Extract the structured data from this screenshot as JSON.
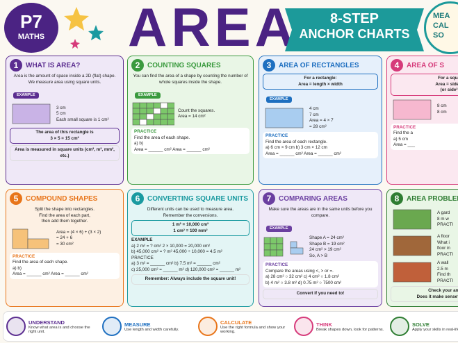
{
  "header": {
    "badge": [
      "P7",
      "MATHS"
    ],
    "title": "AREA",
    "banner": [
      "8-STEP",
      "ANCHOR CHARTS"
    ],
    "corner": [
      "MEA",
      "CAL",
      "SO"
    ]
  },
  "panels": [
    {
      "num": "1",
      "title": "WHAT IS AREA?",
      "color": "#5b2d90",
      "tint": "#efe8f7",
      "blocks": [
        {
          "kind": "intro",
          "lines": [
            "Area is the amount of space inside a 2D (flat) shape.",
            "We measure area using square units."
          ]
        },
        {
          "kind": "tag",
          "lines": [
            "EXAMPLE"
          ]
        },
        {
          "kind": "fig",
          "shape": "rect",
          "fill": "#c9b3e6",
          "lines": [
            "3 cm",
            "5 cm",
            "Each small square is 1 cm²"
          ]
        },
        {
          "kind": "box",
          "lines": [
            "The area of this rectangle is",
            "3 × 5 = 15 cm²"
          ]
        },
        {
          "kind": "foot",
          "lines": [
            "Area is measured in square units (cm², m², mm², etc.)"
          ]
        }
      ]
    },
    {
      "num": "2",
      "title": "COUNTING SQUARES",
      "color": "#3a9a3e",
      "tint": "#e9f6e6",
      "blocks": [
        {
          "kind": "intro",
          "lines": [
            "You can find the area of a shape by counting the number of whole squares inside the shape."
          ]
        },
        {
          "kind": "tag",
          "lines": [
            "EXAMPLE"
          ]
        },
        {
          "kind": "fig",
          "shape": "grid",
          "fill": "#7cc86a",
          "lines": [
            "Count the squares.",
            "Area = 14 cm²"
          ]
        },
        {
          "kind": "practice",
          "lines": [
            "PRACTICE",
            "Find the area of each shape.",
            "a)      b)",
            "Area = ______ cm²     Area = ______ cm²"
          ]
        }
      ]
    },
    {
      "num": "3",
      "title": "AREA OF RECTANGLES",
      "color": "#1e6fc0",
      "tint": "#e6f0fb",
      "blocks": [
        {
          "kind": "box",
          "lines": [
            "For a rectangle:",
            "Area = length × width"
          ]
        },
        {
          "kind": "tag",
          "lines": [
            "EXAMPLE"
          ]
        },
        {
          "kind": "fig",
          "shape": "rect",
          "fill": "#a9cdf0",
          "lines": [
            "4 cm",
            "7 cm",
            "Area = 4 × 7",
            "= 28 cm²"
          ]
        },
        {
          "kind": "practice",
          "lines": [
            "PRACTICE",
            "Find the area of each rectangle.",
            "a) 6 cm × 9 cm      b) 3 cm × 12 cm",
            "Area = ______ cm²     Area = ______ cm²"
          ]
        }
      ]
    },
    {
      "num": "4",
      "title": "AREA OF S",
      "color": "#d63a7a",
      "tint": "#fbe8f0",
      "blocks": [
        {
          "kind": "box",
          "lines": [
            "For a squa",
            "Area = side ×",
            "(or side²"
          ]
        },
        {
          "kind": "fig",
          "shape": "rect",
          "fill": "#f6b8cf",
          "lines": [
            "8 cm",
            "8 cm"
          ]
        },
        {
          "kind": "practice",
          "lines": [
            "PRACTICE",
            "Find the a",
            "a) 5 cm",
            "Area = ___"
          ]
        }
      ]
    },
    {
      "num": "5",
      "title": "COMPOUND SHAPES",
      "color": "#e8751a",
      "tint": "#fdf0e3",
      "blocks": [
        {
          "kind": "intro",
          "lines": [
            "Split the shape into rectangles.",
            "Find the area of each part,",
            "then add them together."
          ]
        },
        {
          "kind": "fig",
          "shape": "L",
          "fill": "#f6c27a",
          "lines": [
            "Area = (4 × 6) + (3 × 2)",
            "= 24 + 6",
            "= 30 cm²"
          ]
        },
        {
          "kind": "practice",
          "lines": [
            "PRACTICE",
            "Find the area of each shape.",
            "a)      b)",
            "Area = ______ cm²     Area = ______ cm²"
          ]
        }
      ]
    },
    {
      "num": "6",
      "title": "CONVERTING SQUARE UNITS",
      "color": "#1a9aa0",
      "tint": "#e3f5f5",
      "blocks": [
        {
          "kind": "intro",
          "lines": [
            "Different units can be used to measure area.",
            "Remember the conversions."
          ]
        },
        {
          "kind": "box",
          "lines": [
            "1 m² = 10,000 cm²",
            "1 cm² = 100 mm²"
          ]
        },
        {
          "kind": "cols",
          "lines": [
            "EXAMPLE",
            "a) 2 m² = ? cm²   2 × 10,000 = 20,000 cm²",
            "b) 45,000 cm² = ? m²   45,000 ÷ 10,000 = 4.5 m²",
            "PRACTICE",
            "a) 3 m² = ______ cm²   b) 7.5 m² = ______ cm²",
            "c) 25,000 cm² = ______ m²   d) 120,000 cm² = ______ m²"
          ]
        },
        {
          "kind": "foot",
          "lines": [
            "Remember: Always include the square unit!"
          ]
        }
      ]
    },
    {
      "num": "7",
      "title": "COMPARING AREAS",
      "color": "#6b3fa0",
      "tint": "#efe8f7",
      "blocks": [
        {
          "kind": "intro",
          "lines": [
            "Make sure the areas are in the same units before you compare."
          ]
        },
        {
          "kind": "tag",
          "lines": [
            "EXAMPLE"
          ]
        },
        {
          "kind": "fig",
          "shape": "squares",
          "fill": "#7cc86a",
          "lines": [
            "Shape A = 24 cm²",
            "Shape B = 19 cm²",
            "24 cm² > 19 cm²",
            "So, A > B"
          ]
        },
        {
          "kind": "practice",
          "lines": [
            "PRACTICE",
            "Compare the areas using <, > or =.",
            "a) 28 cm² ○ 32 cm²   c) 4 cm² ○ 1.8 cm²",
            "b) 4 m² ○ 3.8 m²   d) 0.75 m² ○ 7500 cm²"
          ]
        },
        {
          "kind": "foot",
          "lines": [
            "Convert if you need to!"
          ]
        }
      ]
    },
    {
      "num": "8",
      "title": "AREA PROBLEM",
      "color": "#2e7d32",
      "tint": "#e9f6e6",
      "blocks": [
        {
          "kind": "fig",
          "shape": "rect",
          "fill": "#6aa84f",
          "lines": [
            "A gard",
            "8 m w",
            "PRACTI"
          ]
        },
        {
          "kind": "fig",
          "shape": "rect",
          "fill": "#a0673a",
          "lines": [
            "A floor",
            "What i",
            "floor in",
            "PRACTI"
          ]
        },
        {
          "kind": "fig",
          "shape": "rect",
          "fill": "#c0603a",
          "lines": [
            "A wall",
            "2.5 m",
            "Find th",
            "PRACTI"
          ]
        },
        {
          "kind": "foot",
          "lines": [
            "Check your answer:",
            "Does it make sense? What unit"
          ]
        }
      ]
    }
  ],
  "strip": [
    {
      "title": "UNDERSTAND",
      "text": "Know what area is and choose the right unit.",
      "color": "#5b2d90"
    },
    {
      "title": "MEASURE",
      "text": "Use length and width carefully.",
      "color": "#1e6fc0"
    },
    {
      "title": "CALCULATE",
      "text": "Use the right formula and show your working.",
      "color": "#e8751a"
    },
    {
      "title": "THINK",
      "text": "Break shapes down, look for patterns.",
      "color": "#d63a7a"
    },
    {
      "title": "SOLVE",
      "text": "Apply your skills in real-life problems.",
      "color": "#2e7d32"
    }
  ]
}
